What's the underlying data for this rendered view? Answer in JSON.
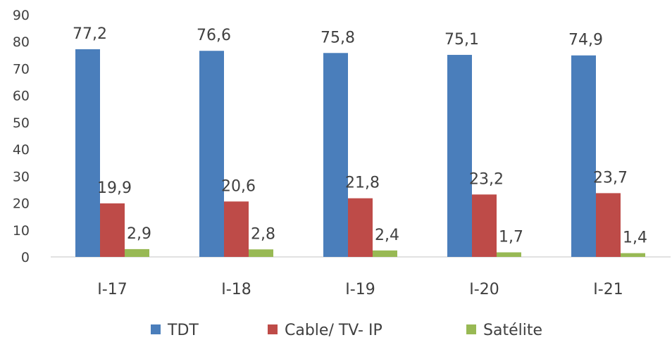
{
  "chart_data": {
    "type": "bar",
    "categories": [
      "I-17",
      "I-18",
      "I-19",
      "I-20",
      "I-21"
    ],
    "series": [
      {
        "name": "TDT",
        "values": [
          77.2,
          76.6,
          75.8,
          75.1,
          74.9
        ],
        "labels": [
          "77,2",
          "76,6",
          "75,8",
          "75,1",
          "74,9"
        ],
        "color": "#4a7ebb"
      },
      {
        "name": "Cable/ TV- IP",
        "values": [
          19.9,
          20.6,
          21.8,
          23.2,
          23.7
        ],
        "labels": [
          "19,9",
          "20,6",
          "21,8",
          "23,2",
          "23,7"
        ],
        "color": "#be4b48"
      },
      {
        "name": "Satélite",
        "values": [
          2.9,
          2.8,
          2.4,
          1.7,
          1.4
        ],
        "labels": [
          "2,9",
          "2,8",
          "2,4",
          "1,7",
          "1,4"
        ],
        "color": "#98b954"
      }
    ],
    "yticks": [
      "0",
      "10",
      "20",
      "30",
      "40",
      "50",
      "60",
      "70",
      "80",
      "90"
    ],
    "ylim": [
      0,
      90
    ],
    "title": "",
    "xlabel": "",
    "ylabel": "",
    "grid": false,
    "legend": "bottom"
  }
}
